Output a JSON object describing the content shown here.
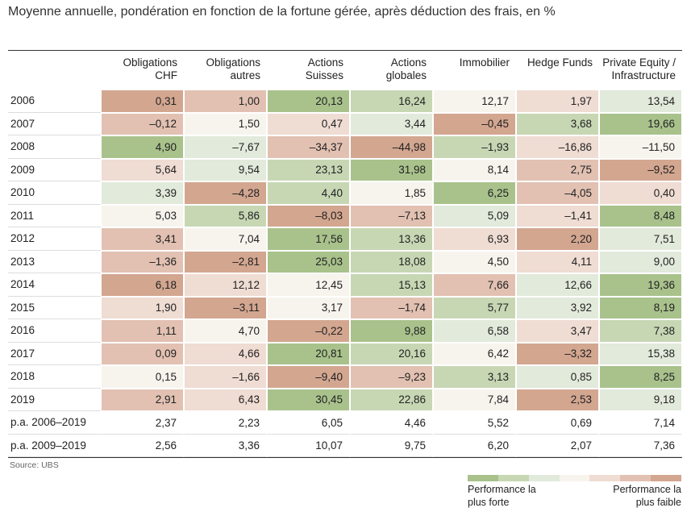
{
  "header": {
    "title": "Moyenne annuelle, pondération en fonction de la fortune gérée, après déduction des frais, en %"
  },
  "table": {
    "columns": [
      "Obligations CHF",
      "Obligations autres",
      "Actions Suisses",
      "Actions globales",
      "Immobilier",
      "Hedge Funds",
      "Private Equity / Infrastructure"
    ],
    "rows": [
      {
        "label": "2006",
        "values": [
          "0,31",
          "1,00",
          "20,13",
          "16,24",
          "12,17",
          "1,97",
          "13,54"
        ]
      },
      {
        "label": "2007",
        "values": [
          "–0,12",
          "1,50",
          "0,47",
          "3,44",
          "–0,45",
          "3,68",
          "19,66"
        ]
      },
      {
        "label": "2008",
        "values": [
          "4,90",
          "–7,67",
          "–34,37",
          "–44,98",
          "–1,93",
          "–16,86",
          "–11,50"
        ]
      },
      {
        "label": "2009",
        "values": [
          "5,64",
          "9,54",
          "23,13",
          "31,98",
          "8,14",
          "2,75",
          "–9,52"
        ]
      },
      {
        "label": "2010",
        "values": [
          "3,39",
          "–4,28",
          "4,40",
          "1,85",
          "6,25",
          "–4,05",
          "0,40"
        ]
      },
      {
        "label": "2011",
        "values": [
          "5,03",
          "5,86",
          "–8,03",
          "–7,13",
          "5,09",
          "–1,41",
          "8,48"
        ]
      },
      {
        "label": "2012",
        "values": [
          "3,41",
          "7,04",
          "17,56",
          "13,36",
          "6,93",
          "2,20",
          "7,51"
        ]
      },
      {
        "label": "2013",
        "values": [
          "–1,36",
          "–2,81",
          "25,03",
          "18,08",
          "4,50",
          "4,11",
          "9,00"
        ]
      },
      {
        "label": "2014",
        "values": [
          "6,18",
          "12,12",
          "12,45",
          "15,13",
          "7,66",
          "12,66",
          "19,36"
        ]
      },
      {
        "label": "2015",
        "values": [
          "1,90",
          "–3,11",
          "3,17",
          "–1,74",
          "5,77",
          "3,92",
          "8,19"
        ]
      },
      {
        "label": "2016",
        "values": [
          "1,11",
          "4,70",
          "–0,22",
          "9,88",
          "6,58",
          "3,47",
          "7,38"
        ]
      },
      {
        "label": "2017",
        "values": [
          "0,09",
          "4,66",
          "20,81",
          "20,16",
          "6,42",
          "–3,32",
          "15,38"
        ]
      },
      {
        "label": "2018",
        "values": [
          "0,15",
          "–1,66",
          "–9,40",
          "–9,23",
          "3,13",
          "0,85",
          "8,25"
        ]
      },
      {
        "label": "2019",
        "values": [
          "2,91",
          "6,43",
          "30,45",
          "22,86",
          "7,84",
          "2,53",
          "9,18"
        ]
      }
    ],
    "summary_rows": [
      {
        "label": "p.a. 2006–2019",
        "values": [
          "2,37",
          "2,23",
          "6,05",
          "4,46",
          "5,52",
          "0,69",
          "7,14"
        ]
      },
      {
        "label": "p.a. 2009–2019",
        "values": [
          "2,56",
          "3,36",
          "10,07",
          "9,75",
          "6,20",
          "2,07",
          "7,36"
        ]
      }
    ]
  },
  "source": "Source: UBS",
  "legend": {
    "colors": [
      "#a9c28c",
      "#c7d7b4",
      "#e2eadb",
      "#f7f4ee",
      "#efdcd3",
      "#e2c1b2",
      "#d3a690"
    ],
    "high": "Performance la plus forte",
    "low": "Performance la plus faible"
  }
}
